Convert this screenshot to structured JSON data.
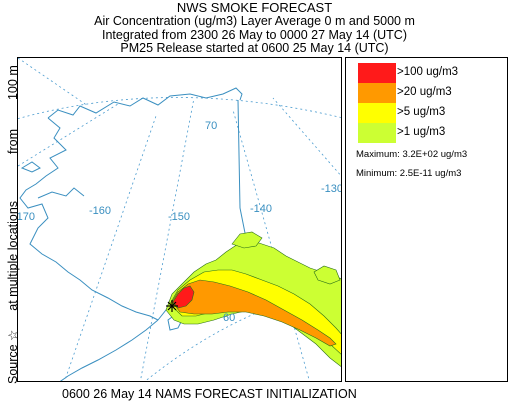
{
  "header": {
    "title": "NWS SMOKE FORECAST",
    "line2": "Air Concentration (ug/m3) Layer Average    0 m and  5000 m",
    "line3": "Integrated from 2300 26 May to 0000 27 May 14 (UTC)",
    "line4": "PM25 Release started at 0600 25 May 14 (UTC)"
  },
  "side_label": {
    "source": "Source ☆",
    "locations": "at multiple locations",
    "from": "from",
    "height": "100 m"
  },
  "map": {
    "graticule_labels": [
      "70",
      "-130",
      "-170",
      "-160",
      "-150",
      "-140",
      "60"
    ],
    "colors": {
      "coast": "#3a8fc0",
      "graticule": "#4a9bcf",
      "contour": "#2a6e1a",
      "level1": "#ccff33",
      "level5": "#ffff00",
      "level20": "#ff9900",
      "level100": "#ff1a1a"
    }
  },
  "legend": {
    "items": [
      {
        "label": ">100 ug/m3",
        "color": "#ff1a1a"
      },
      {
        "label": ">20 ug/m3",
        "color": "#ff9900"
      },
      {
        "label": ">5 ug/m3",
        "color": "#ffff00"
      },
      {
        "label": ">1 ug/m3",
        "color": "#ccff33"
      }
    ],
    "maximum": "Maximum: 3.2E+02 ug/m3",
    "minimum": "Minimum: 2.5E-11 ug/m3"
  },
  "footer": "0600 26 May 14 NAMS FORECAST INITIALIZATION"
}
